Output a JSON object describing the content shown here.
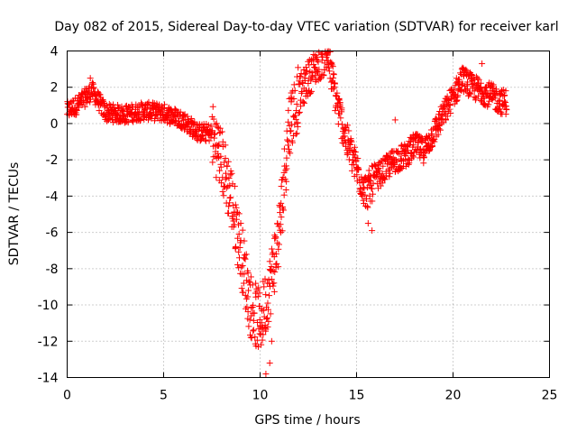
{
  "chart_data": {
    "type": "scatter",
    "title": "Day 082 of 2015, Sidereal Day-to-day VTEC variation (SDTVAR) for receiver karl",
    "xlabel": "GPS time / hours",
    "ylabel": "SDTVAR / TECUs",
    "xlim": [
      0,
      25
    ],
    "ylim": [
      -14,
      4
    ],
    "x_ticks": [
      0,
      5,
      10,
      15,
      20,
      25
    ],
    "y_ticks": [
      -14,
      -12,
      -10,
      -8,
      -6,
      -4,
      -2,
      0,
      2,
      4
    ],
    "grid": true,
    "marker": "+",
    "series_color": "#ff0000",
    "curve_knots": {
      "x": [
        0.0,
        0.5,
        1.0,
        1.3,
        2.0,
        3.0,
        4.0,
        5.0,
        6.0,
        6.8,
        7.5,
        8.0,
        8.5,
        9.0,
        9.5,
        10.0,
        10.5,
        11.0,
        11.5,
        12.0,
        12.5,
        13.0,
        13.5,
        14.0,
        14.5,
        15.0,
        15.5,
        16.0,
        16.5,
        17.0,
        17.5,
        18.0,
        18.5,
        19.0,
        19.5,
        20.0,
        20.5,
        21.0,
        21.5,
        22.0,
        22.5
      ],
      "y": [
        0.7,
        1.0,
        1.5,
        1.8,
        0.6,
        0.5,
        0.7,
        0.6,
        0.2,
        -0.5,
        -0.5,
        -2.0,
        -4.0,
        -7.0,
        -10.0,
        -11.0,
        -9.0,
        -6.0,
        0.0,
        1.5,
        2.5,
        3.3,
        3.8,
        1.0,
        -1.0,
        -2.5,
        -3.8,
        -3.0,
        -2.5,
        -2.0,
        -1.8,
        -1.2,
        -1.5,
        -0.5,
        0.5,
        1.5,
        2.5,
        2.0,
        1.8,
        1.5,
        1.2
      ]
    },
    "scatter_spread": [
      {
        "x": [
          0.0,
          7.5
        ],
        "spread": 0.5
      },
      {
        "x": [
          7.5,
          12.0
        ],
        "spread": 1.8
      },
      {
        "x": [
          12.0,
          16.0
        ],
        "spread": 1.0
      },
      {
        "x": [
          16.0,
          22.8
        ],
        "spread": 0.7
      }
    ],
    "outliers": [
      {
        "x": 10.3,
        "y": -13.8
      },
      {
        "x": 10.5,
        "y": -13.2
      },
      {
        "x": 10.6,
        "y": -12.0
      },
      {
        "x": 10.0,
        "y": -11.2
      },
      {
        "x": 13.5,
        "y": 3.9
      },
      {
        "x": 15.8,
        "y": -5.9
      },
      {
        "x": 15.6,
        "y": -5.5
      },
      {
        "x": 21.5,
        "y": 3.3
      },
      {
        "x": 17.0,
        "y": 0.2
      },
      {
        "x": 1.2,
        "y": 2.5
      }
    ]
  }
}
